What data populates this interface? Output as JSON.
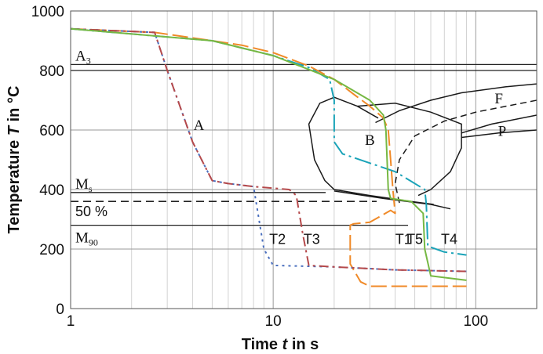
{
  "chart_data": {
    "type": "line",
    "x_scale": "log",
    "xlim": [
      1,
      200
    ],
    "ylim": [
      0,
      1000
    ],
    "grid": true,
    "legend": "none",
    "xlabel": {
      "prefix": "Time ",
      "var": "t",
      "suffix": " in s"
    },
    "ylabel": {
      "prefix": "Temperature ",
      "var": "T",
      "suffix": " in °C"
    },
    "x_ticks": [
      {
        "v": 1,
        "label": "1"
      },
      {
        "v": 10,
        "label": "10"
      },
      {
        "v": 100,
        "label": "100"
      }
    ],
    "y_ticks": [
      {
        "v": 0,
        "label": "0"
      },
      {
        "v": 200,
        "label": "200"
      },
      {
        "v": 400,
        "label": "400"
      },
      {
        "v": 600,
        "label": "600"
      },
      {
        "v": 800,
        "label": "800"
      },
      {
        "v": 1000,
        "label": "1000"
      }
    ],
    "reference_lines": [
      {
        "label": "A",
        "sub": "3",
        "y": 820
      },
      {
        "label": "",
        "sub": "",
        "y": 800
      },
      {
        "label": "M",
        "sub": "s",
        "y": 390
      },
      {
        "label": "50 %",
        "sub": "",
        "y": 360
      },
      {
        "label": "M",
        "sub": "90",
        "y": 280
      }
    ],
    "regions": [
      {
        "label": "A",
        "x": 4.3,
        "y": 600
      },
      {
        "label": "B",
        "x": 30,
        "y": 550
      },
      {
        "label": "F",
        "x": 130,
        "y": 690
      },
      {
        "label": "P",
        "x": 135,
        "y": 580
      }
    ],
    "series": [
      {
        "name": "T1",
        "color": "#f08a28",
        "dash": "20,6",
        "label_x": 44,
        "label_y": 235,
        "points": [
          [
            1,
            940
          ],
          [
            2.6,
            928
          ],
          [
            5,
            900
          ],
          [
            7,
            885
          ],
          [
            10,
            860
          ],
          [
            15,
            815
          ],
          [
            20,
            770
          ],
          [
            25,
            720
          ],
          [
            30,
            680
          ],
          [
            35,
            640
          ],
          [
            37,
            600
          ],
          [
            38,
            500
          ],
          [
            39,
            400
          ],
          [
            40,
            320
          ],
          [
            38,
            330
          ],
          [
            30,
            290
          ],
          [
            25,
            285
          ],
          [
            24,
            280
          ],
          [
            24,
            150
          ],
          [
            27,
            90
          ],
          [
            30,
            75
          ],
          [
            90,
            75
          ]
        ]
      },
      {
        "name": "T2",
        "color": "#4a6fbe",
        "dash": "3,5",
        "label_x": 10.5,
        "label_y": 235,
        "points": [
          [
            1,
            940
          ],
          [
            2.6,
            928
          ],
          [
            3,
            800
          ],
          [
            4,
            560
          ],
          [
            5,
            430
          ],
          [
            6,
            420
          ],
          [
            7,
            415
          ],
          [
            8,
            410
          ],
          [
            9,
            200
          ],
          [
            10,
            145
          ],
          [
            20,
            140
          ],
          [
            40,
            130
          ],
          [
            90,
            125
          ]
        ]
      },
      {
        "name": "T3",
        "color": "#b5494b",
        "dash": "12,5,3,5",
        "label_x": 15.5,
        "label_y": 235,
        "points": [
          [
            1,
            940
          ],
          [
            2.6,
            928
          ],
          [
            3,
            800
          ],
          [
            4,
            560
          ],
          [
            5,
            430
          ],
          [
            6,
            420
          ],
          [
            8,
            410
          ],
          [
            12,
            400
          ],
          [
            13,
            380
          ],
          [
            14,
            250
          ],
          [
            15,
            145
          ],
          [
            20,
            140
          ],
          [
            40,
            130
          ],
          [
            90,
            125
          ]
        ]
      },
      {
        "name": "T4",
        "color": "#1aa3b8",
        "dash": "22,5,3,5",
        "label_x": 74,
        "label_y": 235,
        "points": [
          [
            1,
            940
          ],
          [
            5,
            900
          ],
          [
            10,
            850
          ],
          [
            15,
            810
          ],
          [
            19,
            770
          ],
          [
            20,
            700
          ],
          [
            20,
            560
          ],
          [
            22,
            520
          ],
          [
            40,
            460
          ],
          [
            56,
            400
          ],
          [
            57,
            350
          ],
          [
            58,
            210
          ],
          [
            70,
            190
          ],
          [
            90,
            180
          ]
        ]
      },
      {
        "name": "T5",
        "color": "#76b843",
        "dash": "",
        "label_x": 50,
        "label_y": 235,
        "points": [
          [
            1,
            940
          ],
          [
            5,
            900
          ],
          [
            10,
            850
          ],
          [
            20,
            770
          ],
          [
            30,
            700
          ],
          [
            35,
            650
          ],
          [
            36,
            600
          ],
          [
            37,
            400
          ],
          [
            38,
            370
          ],
          [
            48,
            360
          ],
          [
            55,
            320
          ],
          [
            56,
            200
          ],
          [
            60,
            110
          ],
          [
            90,
            95
          ]
        ]
      }
    ],
    "transformation_curves": [
      {
        "id": "bainite-start",
        "style": "solid",
        "points": [
          [
            33,
            640
          ],
          [
            26,
            680
          ],
          [
            20,
            710
          ],
          [
            17,
            690
          ],
          [
            15,
            620
          ],
          [
            16,
            500
          ],
          [
            18,
            430
          ],
          [
            20,
            400
          ],
          [
            30,
            380
          ],
          [
            48,
            360
          ],
          [
            62,
            350
          ]
        ]
      },
      {
        "id": "ferrite-bound",
        "style": "solid",
        "points": [
          [
            32,
            625
          ],
          [
            42,
            665
          ],
          [
            60,
            700
          ],
          [
            85,
            725
          ],
          [
            140,
            745
          ],
          [
            200,
            755
          ]
        ]
      },
      {
        "id": "ferrite-50",
        "style": "dashed",
        "points": [
          [
            42,
            355
          ],
          [
            40,
            420
          ],
          [
            42,
            500
          ],
          [
            50,
            580
          ],
          [
            70,
            630
          ],
          [
            100,
            660
          ],
          [
            200,
            700
          ]
        ]
      },
      {
        "id": "bainite-end",
        "style": "solid",
        "points": [
          [
            26,
            680
          ],
          [
            40,
            690
          ],
          [
            60,
            660
          ],
          [
            85,
            620
          ],
          [
            85,
            540
          ],
          [
            75,
            460
          ],
          [
            60,
            400
          ],
          [
            52,
            380
          ]
        ]
      },
      {
        "id": "pearlite-upper",
        "style": "solid",
        "points": [
          [
            85,
            590
          ],
          [
            120,
            620
          ],
          [
            200,
            650
          ]
        ]
      },
      {
        "id": "pearlite-lower",
        "style": "solid",
        "points": [
          [
            85,
            575
          ],
          [
            130,
            590
          ],
          [
            200,
            600
          ]
        ]
      },
      {
        "id": "ms-tail",
        "style": "solid",
        "points": [
          [
            20,
            395
          ],
          [
            35,
            370
          ],
          [
            60,
            350
          ],
          [
            75,
            335
          ]
        ]
      }
    ]
  }
}
